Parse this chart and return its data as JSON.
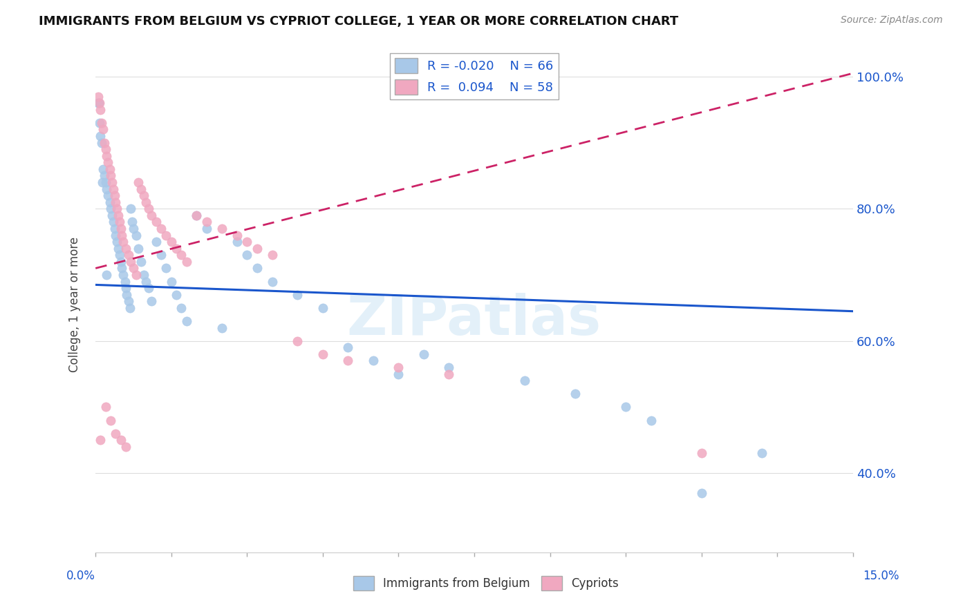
{
  "title": "IMMIGRANTS FROM BELGIUM VS CYPRIOT COLLEGE, 1 YEAR OR MORE CORRELATION CHART",
  "source_text": "Source: ZipAtlas.com",
  "ylabel": "College, 1 year or more",
  "xlim": [
    0.0,
    15.0
  ],
  "ylim": [
    28.0,
    103.0
  ],
  "yticks": [
    40.0,
    60.0,
    80.0,
    100.0
  ],
  "ytick_labels": [
    "40.0%",
    "60.0%",
    "80.0%",
    "100.0%"
  ],
  "watermark": "ZIPatlas",
  "blue_color": "#a8c8e8",
  "pink_color": "#f0a8c0",
  "blue_line_color": "#1a56cc",
  "pink_line_color": "#cc2266",
  "background_color": "#ffffff",
  "blue_line_x0": 0.0,
  "blue_line_y0": 68.5,
  "blue_line_x1": 15.0,
  "blue_line_y1": 64.5,
  "pink_line_x0": 0.0,
  "pink_line_y0": 71.0,
  "pink_line_x1": 15.0,
  "pink_line_y1": 100.5,
  "blue_x": [
    0.05,
    0.08,
    0.1,
    0.12,
    0.15,
    0.18,
    0.2,
    0.22,
    0.25,
    0.28,
    0.3,
    0.32,
    0.35,
    0.38,
    0.4,
    0.42,
    0.45,
    0.48,
    0.5,
    0.52,
    0.55,
    0.58,
    0.6,
    0.62,
    0.65,
    0.68,
    0.7,
    0.72,
    0.75,
    0.8,
    0.85,
    0.9,
    0.95,
    1.0,
    1.05,
    1.1,
    1.2,
    1.3,
    1.4,
    1.5,
    1.6,
    1.7,
    1.8,
    2.0,
    2.2,
    2.5,
    2.8,
    3.0,
    3.2,
    3.5,
    4.0,
    4.5,
    5.0,
    5.5,
    6.0,
    6.5,
    7.0,
    8.5,
    9.5,
    10.5,
    11.0,
    12.0,
    13.2,
    0.06,
    0.13,
    0.22
  ],
  "blue_y": [
    96,
    93,
    91,
    90,
    86,
    85,
    84,
    83,
    82,
    81,
    80,
    79,
    78,
    77,
    76,
    75,
    74,
    73,
    72,
    71,
    70,
    69,
    68,
    67,
    66,
    65,
    80,
    78,
    77,
    76,
    74,
    72,
    70,
    69,
    68,
    66,
    75,
    73,
    71,
    69,
    67,
    65,
    63,
    79,
    77,
    62,
    75,
    73,
    71,
    69,
    67,
    65,
    59,
    57,
    55,
    58,
    56,
    54,
    52,
    50,
    48,
    37,
    43,
    96,
    84,
    70
  ],
  "pink_x": [
    0.05,
    0.08,
    0.1,
    0.12,
    0.15,
    0.18,
    0.2,
    0.22,
    0.25,
    0.28,
    0.3,
    0.32,
    0.35,
    0.38,
    0.4,
    0.42,
    0.45,
    0.48,
    0.5,
    0.52,
    0.55,
    0.6,
    0.65,
    0.7,
    0.75,
    0.8,
    0.85,
    0.9,
    0.95,
    1.0,
    1.05,
    1.1,
    1.2,
    1.3,
    1.4,
    1.5,
    1.6,
    1.7,
    1.8,
    2.0,
    2.2,
    2.5,
    2.8,
    3.0,
    3.2,
    3.5,
    4.0,
    4.5,
    5.0,
    6.0,
    7.0,
    0.1,
    0.2,
    0.3,
    0.4,
    0.5,
    0.6,
    12.0
  ],
  "pink_y": [
    97,
    96,
    95,
    93,
    92,
    90,
    89,
    88,
    87,
    86,
    85,
    84,
    83,
    82,
    81,
    80,
    79,
    78,
    77,
    76,
    75,
    74,
    73,
    72,
    71,
    70,
    84,
    83,
    82,
    81,
    80,
    79,
    78,
    77,
    76,
    75,
    74,
    73,
    72,
    79,
    78,
    77,
    76,
    75,
    74,
    73,
    60,
    58,
    57,
    56,
    55,
    45,
    50,
    48,
    46,
    45,
    44,
    43
  ]
}
